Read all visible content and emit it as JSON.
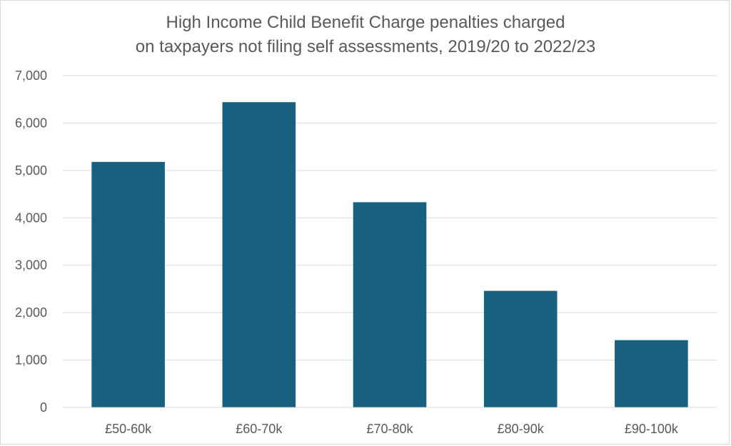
{
  "chart_data": {
    "type": "bar",
    "title_lines": [
      "High Income Child Benefit Charge penalties charged",
      "on taxpayers not filing self assessments, 2019/20 to 2022/23"
    ],
    "categories": [
      "£50-60k",
      "£60-70k",
      "£70-80k",
      "£80-90k",
      "£90-100k"
    ],
    "values": [
      5180,
      6440,
      4330,
      2460,
      1420
    ],
    "ylim": [
      0,
      7000
    ],
    "yticks": [
      0,
      1000,
      2000,
      3000,
      4000,
      5000,
      6000,
      7000
    ],
    "ytick_labels": [
      "0",
      "1,000",
      "2,000",
      "3,000",
      "4,000",
      "5,000",
      "6,000",
      "7,000"
    ],
    "bar_color": "#17607f",
    "grid": true,
    "legend": "none"
  }
}
